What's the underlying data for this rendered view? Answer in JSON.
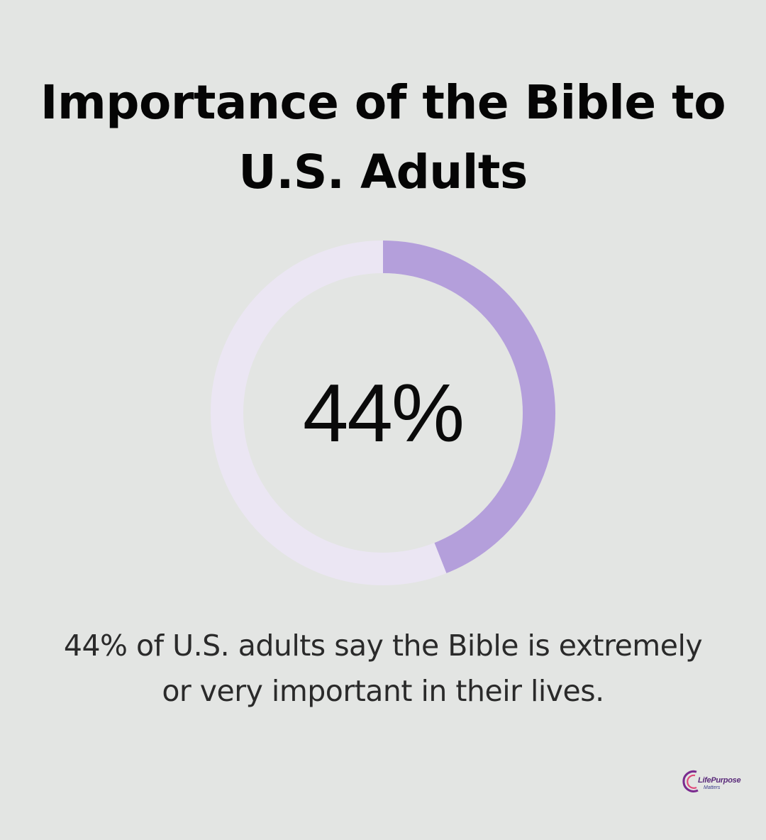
{
  "title_line1": "Importance of the Bible to",
  "title_line2": "U.S. Adults",
  "chart_data": {
    "type": "pie",
    "variant": "donut",
    "value": 44,
    "unit": "%",
    "label": "44%",
    "track_color": "#ebe6f3",
    "fill_color": "#b49fdb"
  },
  "caption_line1": "44% of U.S. adults say the Bible is extremely",
  "caption_line2": "or very important in their lives.",
  "logo": {
    "text": "LifePurpose",
    "subtext": "Matters"
  }
}
